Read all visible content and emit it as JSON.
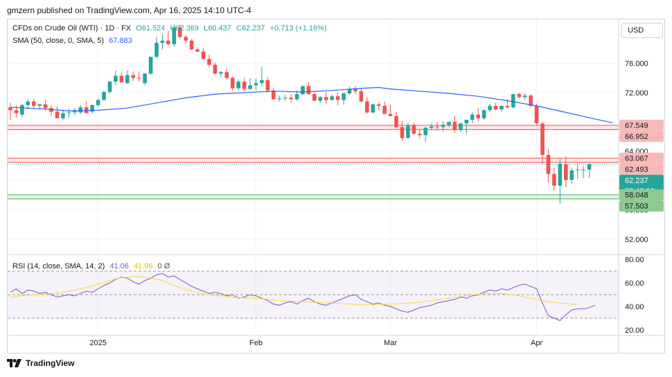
{
  "header": {
    "publisher": "gmzern published on TradingView.com, Apr 16, 2025 14:10 UTC-4"
  },
  "legend": {
    "symbol": "CFDs on Crude Oil (WTI) · 1D · FX",
    "open": "O61.524",
    "high": "H62.369",
    "low": "L60.437",
    "close": "C62.237",
    "change": "+0.713 (+1.16%)",
    "sma_label": "SMA (50, close, 0, SMA, 5)",
    "sma_value": "67.883",
    "rsi_label": "RSI (14, close, SMA, 14, 2)",
    "rsi_value": "41.06",
    "rsi_sma_value": "41.96",
    "rsi_extra": "0 Ø"
  },
  "currency_button": "USD",
  "footer": {
    "brand": "TradingView"
  },
  "colors": {
    "up": "#26a69a",
    "down": "#ef5350",
    "sma": "#2962ff",
    "rsi": "#7e57c2",
    "rsi_sma": "#fdd835"
  },
  "chart_data": [
    {
      "type": "candlestick",
      "title": "CFDs on Crude Oil (WTI) · 1D · FX",
      "x_tick_labels": [
        "2025",
        "Feb",
        "Mar",
        "Apr"
      ],
      "ylim": [
        50.0,
        82.0
      ],
      "y_ticks": [
        "52.000",
        "56.000",
        "60.000",
        "64.000",
        "68.000",
        "72.000",
        "76.000"
      ],
      "price_labels": [
        {
          "value": 67.549,
          "text": "67.549",
          "kind": "resistance"
        },
        {
          "value": 66.952,
          "text": "66.952",
          "kind": "resistance"
        },
        {
          "value": 63.067,
          "text": "63.067",
          "kind": "resistance"
        },
        {
          "value": 62.493,
          "text": "62.493",
          "kind": "resistance"
        },
        {
          "value": 62.237,
          "text": "62.237",
          "kind": "last"
        },
        {
          "value": 58.048,
          "text": "58.048",
          "kind": "support"
        },
        {
          "value": 57.503,
          "text": "57.503",
          "kind": "support"
        }
      ],
      "countdown": "02:49:10",
      "zones": [
        {
          "from": 66.952,
          "to": 67.549,
          "kind": "resistance"
        },
        {
          "from": 62.493,
          "to": 63.067,
          "kind": "resistance"
        },
        {
          "from": 57.503,
          "to": 58.048,
          "kind": "support"
        }
      ],
      "candles": [
        [
          70.0,
          70.6,
          68.2,
          69.6
        ],
        [
          69.6,
          70.3,
          68.6,
          69.2
        ],
        [
          69.0,
          70.5,
          68.6,
          70.3
        ],
        [
          70.3,
          71.1,
          69.7,
          70.8
        ],
        [
          70.8,
          71.1,
          69.8,
          70.2
        ],
        [
          70.2,
          70.5,
          69.7,
          70.4
        ],
        [
          70.4,
          71.0,
          69.6,
          69.9
        ],
        [
          69.9,
          70.3,
          68.9,
          69.4
        ],
        [
          69.4,
          70.1,
          68.5,
          68.5
        ],
        [
          68.5,
          69.7,
          68.2,
          69.2
        ],
        [
          69.2,
          69.8,
          68.6,
          69.3
        ],
        [
          69.3,
          69.9,
          68.9,
          69.6
        ],
        [
          69.3,
          70.3,
          69.1,
          70.0
        ],
        [
          70.0,
          70.8,
          69.2,
          69.2
        ],
        [
          69.4,
          70.4,
          69.2,
          70.3
        ],
        [
          70.3,
          71.2,
          70.1,
          71.0
        ],
        [
          71.0,
          72.2,
          70.9,
          72.1
        ],
        [
          72.1,
          73.6,
          71.9,
          73.5
        ],
        [
          73.5,
          75.0,
          73.0,
          74.3
        ],
        [
          74.3,
          74.8,
          73.4,
          73.4
        ],
        [
          73.3,
          75.0,
          73.2,
          74.4
        ],
        [
          74.4,
          74.9,
          73.6,
          74.0
        ],
        [
          74.0,
          74.9,
          73.5,
          73.9
        ],
        [
          73.3,
          74.7,
          73.0,
          74.6
        ],
        [
          74.6,
          76.9,
          74.4,
          76.9
        ],
        [
          76.9,
          79.6,
          76.6,
          78.8
        ],
        [
          78.8,
          80.0,
          77.9,
          79.1
        ],
        [
          79.1,
          80.5,
          78.5,
          78.6
        ],
        [
          78.6,
          81.2,
          78.3,
          80.9
        ],
        [
          80.9,
          81.3,
          79.3,
          79.6
        ],
        [
          79.6,
          79.9,
          78.7,
          79.1
        ],
        [
          79.1,
          79.3,
          77.8,
          77.9
        ],
        [
          77.9,
          78.2,
          77.5,
          77.6
        ],
        [
          77.6,
          78.1,
          76.5,
          76.6
        ],
        [
          76.6,
          77.2,
          75.5,
          75.8
        ],
        [
          75.8,
          76.1,
          74.5,
          74.6
        ],
        [
          74.6,
          75.0,
          74.1,
          74.8
        ],
        [
          74.8,
          75.3,
          73.8,
          74.0
        ],
        [
          74.0,
          74.2,
          72.2,
          72.6
        ],
        [
          72.6,
          73.8,
          72.3,
          73.5
        ],
        [
          73.5,
          74.0,
          72.2,
          72.5
        ],
        [
          72.5,
          74.0,
          72.4,
          73.0
        ],
        [
          73.0,
          73.9,
          72.3,
          73.3
        ],
        [
          73.3,
          75.5,
          72.8,
          73.7
        ],
        [
          73.7,
          74.1,
          72.0,
          72.3
        ],
        [
          72.3,
          72.7,
          71.0,
          71.1
        ],
        [
          71.1,
          71.6,
          70.8,
          71.2
        ],
        [
          71.2,
          71.7,
          70.9,
          71.3
        ],
        [
          71.3,
          71.8,
          70.6,
          71.1
        ],
        [
          71.1,
          72.3,
          70.9,
          71.8
        ],
        [
          71.8,
          72.9,
          71.7,
          72.9
        ],
        [
          72.9,
          73.4,
          71.7,
          71.8
        ],
        [
          71.8,
          72.2,
          70.8,
          70.9
        ],
        [
          70.9,
          71.5,
          70.6,
          71.4
        ],
        [
          71.4,
          72.1,
          70.5,
          71.0
        ],
        [
          71.0,
          71.7,
          70.9,
          71.5
        ],
        [
          71.5,
          72.0,
          70.3,
          71.0
        ],
        [
          71.0,
          72.0,
          70.4,
          71.9
        ],
        [
          71.9,
          72.8,
          71.7,
          72.5
        ],
        [
          72.5,
          72.9,
          71.8,
          72.2
        ],
        [
          72.2,
          72.6,
          70.7,
          70.8
        ],
        [
          70.8,
          71.4,
          69.1,
          69.3
        ],
        [
          69.3,
          70.5,
          69.1,
          70.4
        ],
        [
          70.4,
          70.7,
          69.6,
          70.2
        ],
        [
          70.2,
          70.8,
          69.2,
          69.1
        ],
        [
          69.1,
          70.4,
          68.8,
          68.8
        ],
        [
          68.8,
          69.4,
          67.1,
          67.3
        ],
        [
          67.3,
          68.2,
          65.4,
          65.8
        ],
        [
          65.8,
          67.9,
          65.8,
          67.6
        ],
        [
          67.6,
          67.9,
          66.2,
          66.4
        ],
        [
          66.4,
          67.0,
          65.8,
          66.2
        ],
        [
          66.2,
          67.3,
          65.3,
          67.2
        ],
        [
          67.2,
          67.8,
          66.9,
          67.4
        ],
        [
          67.4,
          68.0,
          66.8,
          67.3
        ],
        [
          67.3,
          68.1,
          66.7,
          67.6
        ],
        [
          67.6,
          68.0,
          67.3,
          68.0
        ],
        [
          68.0,
          68.8,
          66.5,
          66.9
        ],
        [
          66.9,
          67.9,
          66.6,
          67.8
        ],
        [
          67.8,
          68.2,
          66.4,
          68.3
        ],
        [
          68.3,
          69.3,
          67.8,
          69.0
        ],
        [
          69.0,
          69.9,
          68.1,
          68.5
        ],
        [
          68.5,
          69.7,
          68.3,
          69.6
        ],
        [
          69.6,
          70.5,
          69.4,
          70.2
        ],
        [
          70.2,
          70.6,
          69.6,
          69.7
        ],
        [
          69.7,
          70.3,
          69.4,
          70.2
        ],
        [
          70.2,
          71.1,
          69.9,
          70.0
        ],
        [
          70.0,
          71.6,
          69.9,
          71.8
        ],
        [
          71.8,
          72.0,
          71.2,
          71.4
        ],
        [
          71.4,
          71.9,
          71.0,
          71.6
        ],
        [
          71.6,
          71.8,
          70.0,
          70.2
        ],
        [
          70.2,
          70.5,
          67.6,
          67.8
        ],
        [
          67.8,
          68.0,
          62.3,
          63.5
        ],
        [
          63.5,
          64.3,
          59.7,
          60.9
        ],
        [
          60.9,
          61.8,
          58.6,
          59.3
        ],
        [
          59.3,
          63.0,
          56.8,
          62.3
        ],
        [
          62.2,
          63.3,
          59.1,
          60.1
        ],
        [
          60.1,
          61.8,
          59.6,
          61.4
        ],
        [
          61.4,
          62.3,
          60.2,
          61.5
        ],
        [
          61.5,
          62.0,
          60.3,
          61.5
        ],
        [
          61.5,
          62.4,
          60.4,
          62.237
        ]
      ],
      "sma": [
        [
          0,
          70.0
        ],
        [
          5,
          69.8
        ],
        [
          10,
          69.5
        ],
        [
          15,
          69.6
        ],
        [
          20,
          69.9
        ],
        [
          25,
          70.6
        ],
        [
          30,
          71.3
        ],
        [
          35,
          71.8
        ],
        [
          40,
          72.0
        ],
        [
          45,
          72.2
        ],
        [
          50,
          72.1
        ],
        [
          55,
          72.3
        ],
        [
          60,
          72.6
        ],
        [
          63,
          72.7
        ],
        [
          65,
          72.5
        ],
        [
          70,
          72.2
        ],
        [
          75,
          71.9
        ],
        [
          80,
          71.5
        ],
        [
          85,
          70.9
        ],
        [
          90,
          70.2
        ],
        [
          95,
          69.3
        ],
        [
          100,
          68.4
        ],
        [
          103,
          67.883
        ]
      ]
    },
    {
      "type": "line",
      "title": "RSI (14, close, SMA, 14, 2)",
      "ylim": [
        20,
        80
      ],
      "y_ticks": [
        "20.00",
        "40.00",
        "60.00",
        "80.00"
      ],
      "bands": [
        30,
        50,
        70
      ],
      "series": [
        {
          "name": "RSI",
          "values": [
            52,
            55,
            51,
            54,
            53,
            51,
            52,
            50,
            48,
            49,
            50,
            49,
            51,
            53,
            52,
            55,
            58,
            60,
            63,
            65,
            64,
            61,
            59,
            62,
            64,
            67,
            68,
            65,
            66,
            63,
            60,
            57,
            55,
            53,
            51,
            52,
            51,
            49,
            50,
            47,
            48,
            50,
            49,
            47,
            45,
            42,
            41,
            43,
            44,
            42,
            45,
            47,
            44,
            42,
            41,
            43,
            45,
            47,
            49,
            50,
            46,
            44,
            42,
            43,
            41,
            40,
            38,
            36,
            35,
            37,
            39,
            40,
            41,
            43,
            44,
            45,
            46,
            48,
            47,
            49,
            50,
            52,
            54,
            53,
            55,
            54,
            56,
            58,
            59,
            57,
            55,
            43,
            32,
            30,
            28,
            33,
            37,
            38,
            38,
            39,
            41.06
          ]
        },
        {
          "name": "SMA",
          "values": [
            48,
            48.5,
            49,
            49.5,
            49.8,
            50,
            50.5,
            51,
            51.5,
            52,
            53,
            54,
            55,
            56,
            57.5,
            59,
            60.5,
            62,
            63.5,
            64.5,
            65,
            65.3,
            65.2,
            64.8,
            64,
            63,
            62,
            60,
            58,
            56,
            54.5,
            53,
            51.5,
            50.5,
            50,
            49.5,
            49,
            48.5,
            48,
            47.5,
            47.3,
            47,
            46.8,
            46.5,
            46,
            45.5,
            45,
            44.7,
            44.5,
            44.2,
            44,
            43.8,
            43.5,
            43.3,
            43,
            42.8,
            42.5,
            42.3,
            42,
            41.8,
            41.7,
            41.6,
            41.5,
            41.6,
            41.8,
            42,
            42.2,
            42.5,
            42.8,
            43.2,
            43.7,
            44.2,
            44.8,
            45.5,
            46.3,
            47,
            47.8,
            48.5,
            49.2,
            49.8,
            50.3,
            50.6,
            50.8,
            51,
            50.8,
            50.4,
            49.8,
            49,
            48,
            47,
            46,
            45,
            44,
            43.3,
            42.8,
            42.4,
            42.1,
            41.96
          ]
        }
      ]
    }
  ]
}
